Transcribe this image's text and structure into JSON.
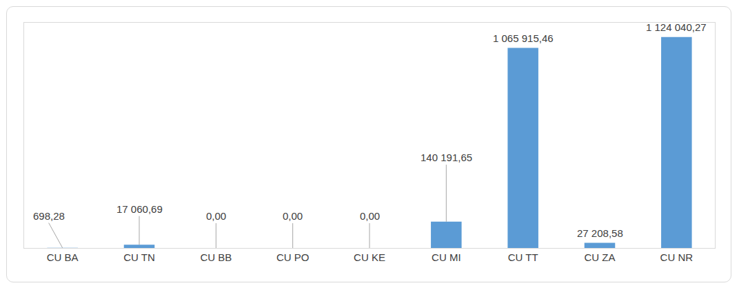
{
  "chart_data": {
    "type": "bar",
    "categories": [
      "CU BA",
      "CU TN",
      "CU BB",
      "CU PO",
      "CU KE",
      "CU MI",
      "CU TT",
      "CU ZA",
      "CU NR"
    ],
    "values": [
      698.28,
      17060.69,
      0,
      0,
      0,
      140191.65,
      1065915.46,
      27208.58,
      1124040.27
    ],
    "value_labels": [
      "698,28",
      "17 060,69",
      "0,00",
      "0,00",
      "0,00",
      "140 191,65",
      "1 065 915,46",
      "27 208,58",
      "1 124 040,27"
    ],
    "color": "#5b9bd5",
    "ylim": [
      0,
      1200000
    ],
    "grid": false,
    "data_labels": true,
    "tick_labels": "x"
  }
}
